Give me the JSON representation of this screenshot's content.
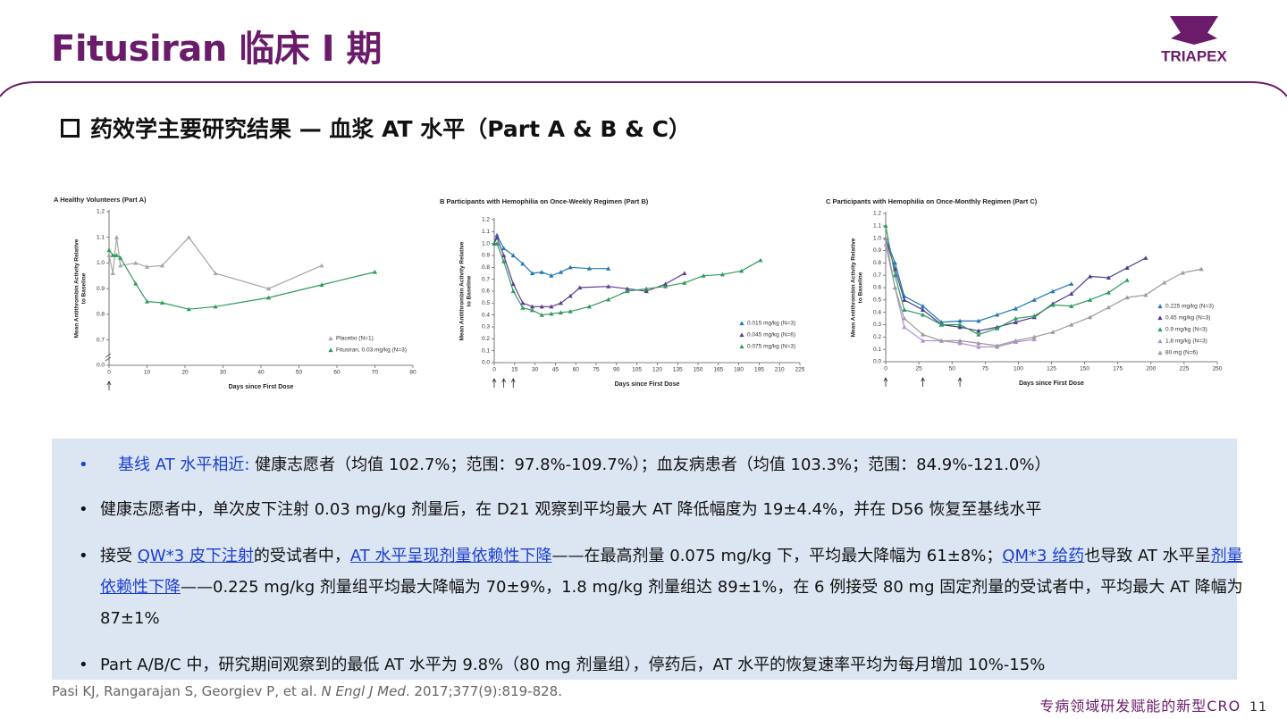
{
  "header": {
    "title": "Fitusiran 临床 I 期",
    "logo": "TRIAPEX"
  },
  "section_title": "药效学主要研究结果 — 血浆 AT 水平（Part A & B & C）",
  "chart_data": [
    {
      "type": "line",
      "title": "A  Healthy Volunteers (Part A)",
      "xlabel": "Days since First Dose",
      "ylabel": [
        "Mean Antithrombin Activity Relative",
        "to Baseline"
      ],
      "xlim": [
        0,
        80
      ],
      "xticks": [
        0,
        10,
        20,
        30,
        40,
        50,
        60,
        70,
        80
      ],
      "ylim": [
        0,
        1.2
      ],
      "yticks": [
        {
          "value": 0,
          "label": "0.0"
        },
        0.7,
        0.8,
        0.9,
        {
          "value": 1,
          "label": "1.0"
        },
        1.1,
        1.2
      ],
      "axis_break": true,
      "legend": "lower right",
      "dose_days": [
        0
      ],
      "series": [
        {
          "name": "Placebo (N=1)",
          "color": "#a6a6a6",
          "x": [
            0,
            1,
            2,
            3,
            7,
            10,
            14,
            21,
            28,
            42,
            56
          ],
          "values": [
            1.03,
            0.96,
            1.1,
            0.99,
            1.0,
            0.985,
            0.99,
            1.1,
            0.96,
            0.9,
            0.99
          ]
        },
        {
          "name": "Fitusiran, 0.03 mg/kg (N=3)",
          "color": "#2e9b5a",
          "x": [
            0,
            1,
            2,
            3,
            7,
            10,
            14,
            21,
            28,
            42,
            56,
            70
          ],
          "values": [
            1.05,
            1.03,
            1.03,
            1.02,
            0.92,
            0.85,
            0.845,
            0.82,
            0.83,
            0.865,
            0.915,
            0.965
          ]
        }
      ]
    },
    {
      "type": "line",
      "title": "B  Participants with Hemophilia on Once-Weekly Regimen (Part B)",
      "xlabel": "Days since First Dose",
      "ylabel": [
        "Mean Antithrombin Activity Relative",
        "to Baseline"
      ],
      "xlim": [
        0,
        225
      ],
      "xticks": [
        0,
        15,
        30,
        45,
        60,
        75,
        90,
        105,
        120,
        135,
        150,
        165,
        180,
        195,
        210,
        225
      ],
      "ylim": [
        0,
        1.2
      ],
      "yticks": [
        {
          "value": 0,
          "label": "0.0"
        },
        0.1,
        0.2,
        0.3,
        0.4,
        0.5,
        0.6,
        0.7,
        0.8,
        0.9,
        {
          "value": 1,
          "label": "1.0"
        },
        1.1,
        1.2
      ],
      "legend": "lower right",
      "dose_days": [
        0,
        7,
        14
      ],
      "series": [
        {
          "name": "0.015 mg/kg (N=3)",
          "color": "#1f78b4",
          "x": [
            0,
            2,
            7,
            14,
            21,
            28,
            35,
            42,
            49,
            56,
            70,
            84
          ],
          "values": [
            1.0,
            1.07,
            0.96,
            0.9,
            0.83,
            0.75,
            0.76,
            0.73,
            0.76,
            0.8,
            0.79,
            0.79
          ]
        },
        {
          "name": "0.045 mg/kg (N=6)",
          "color": "#5b3d8f",
          "x": [
            0,
            2,
            7,
            14,
            21,
            28,
            35,
            42,
            49,
            56,
            63,
            84,
            98,
            112,
            126,
            140
          ],
          "values": [
            1.0,
            1.05,
            0.9,
            0.66,
            0.5,
            0.47,
            0.47,
            0.47,
            0.5,
            0.56,
            0.63,
            0.64,
            0.62,
            0.6,
            0.66,
            0.75
          ]
        },
        {
          "name": "0.075 mg/kg (N=3)",
          "color": "#2e9b5a",
          "x": [
            0,
            2,
            7,
            14,
            21,
            28,
            35,
            42,
            49,
            56,
            70,
            84,
            98,
            112,
            126,
            140,
            154,
            168,
            182,
            196
          ],
          "values": [
            1.0,
            1.0,
            0.85,
            0.6,
            0.46,
            0.44,
            0.4,
            0.41,
            0.42,
            0.43,
            0.47,
            0.53,
            0.6,
            0.62,
            0.64,
            0.67,
            0.73,
            0.74,
            0.77,
            0.86
          ]
        }
      ]
    },
    {
      "type": "line",
      "title": "C  Participants with Hemophilia on Once-Monthly Regimen (Part C)",
      "xlabel": "Days since First Dose",
      "ylabel": [
        "Mean Antithrombin Activity Relative",
        "to Baseline"
      ],
      "xlim": [
        0,
        250
      ],
      "xticks": [
        0,
        25,
        50,
        75,
        100,
        125,
        150,
        175,
        200,
        225,
        250
      ],
      "ylim": [
        0,
        1.2
      ],
      "yticks": [
        {
          "value": 0,
          "label": "0.0"
        },
        0.1,
        0.2,
        0.3,
        0.4,
        0.5,
        0.6,
        0.7,
        0.8,
        0.9,
        {
          "value": 1,
          "label": "1.0"
        },
        1.1,
        1.2
      ],
      "legend": "right",
      "dose_days": [
        0,
        28,
        56
      ],
      "series": [
        {
          "name": "0.225 mg/kg (N=3)",
          "color": "#1f78b4",
          "x": [
            0,
            7,
            14,
            28,
            42,
            56,
            70,
            84,
            98,
            112,
            126,
            140
          ],
          "values": [
            1.0,
            0.8,
            0.53,
            0.45,
            0.32,
            0.33,
            0.33,
            0.38,
            0.43,
            0.5,
            0.57,
            0.63
          ]
        },
        {
          "name": "0.45 mg/kg (N=3)",
          "color": "#4b3a8c",
          "x": [
            0,
            7,
            14,
            28,
            42,
            56,
            70,
            84,
            98,
            112,
            126,
            140,
            154,
            168,
            182,
            196
          ],
          "values": [
            1.0,
            0.75,
            0.5,
            0.42,
            0.3,
            0.28,
            0.25,
            0.28,
            0.32,
            0.36,
            0.47,
            0.55,
            0.69,
            0.68,
            0.76,
            0.84
          ]
        },
        {
          "name": "0.9 mg/kg (N=3)",
          "color": "#2e9b5a",
          "x": [
            0,
            7,
            14,
            28,
            42,
            56,
            70,
            84,
            98,
            112,
            126,
            140,
            154,
            168,
            182
          ],
          "values": [
            1.1,
            0.7,
            0.42,
            0.38,
            0.3,
            0.3,
            0.22,
            0.27,
            0.35,
            0.37,
            0.46,
            0.45,
            0.5,
            0.56,
            0.66
          ]
        },
        {
          "name": "1.8 mg/kg (N=3)",
          "color": "#b48fd0",
          "x": [
            0,
            7,
            14,
            28,
            42,
            56,
            70,
            84,
            98,
            112
          ],
          "values": [
            0.95,
            0.6,
            0.28,
            0.17,
            0.17,
            0.15,
            0.12,
            0.12,
            0.16,
            0.18
          ]
        },
        {
          "name": "80 mg (N=6)",
          "color": "#9a9a9a",
          "x": [
            0,
            7,
            14,
            28,
            42,
            56,
            70,
            84,
            98,
            112,
            126,
            140,
            154,
            168,
            182,
            196,
            210,
            224,
            238
          ],
          "values": [
            1.0,
            0.6,
            0.35,
            0.22,
            0.17,
            0.17,
            0.15,
            0.13,
            0.17,
            0.2,
            0.24,
            0.3,
            0.36,
            0.44,
            0.52,
            0.54,
            0.64,
            0.72,
            0.75
          ]
        }
      ]
    }
  ],
  "bullets": [
    [
      {
        "text": "基线 AT 水平相近:",
        "style": "highlight"
      },
      {
        "text": " 健康志愿者（均值 102.7%；范围：97.8%-109.7%）；血友病患者（均值 103.3%；范围：84.9%-121.0%）"
      }
    ],
    [
      {
        "text": "健康志愿者中，单次皮下注射 0.03 mg/kg 剂量后，在 D21 观察到平均最大 AT 降低幅度为 19±4.4%，并在 D56 恢复至基线水平"
      }
    ],
    [
      {
        "text": "接受 "
      },
      {
        "text": "QW*3 皮下注射",
        "style": "link"
      },
      {
        "text": "的受试者中，"
      },
      {
        "text": "AT 水平呈现剂量依赖性下降",
        "style": "link"
      },
      {
        "text": "——在最高剂量 0.075 mg/kg 下，平均最大降幅为 61±8%；"
      },
      {
        "text": "QM*3 给药",
        "style": "link"
      },
      {
        "text": "也导致 AT 水平呈"
      },
      {
        "text": "剂量依赖性下降",
        "style": "link"
      },
      {
        "text": "——0.225 mg/kg 剂量组平均最大降幅为 70±9%，1.8 mg/kg 剂量组达 89±1%，在 6 例接受 80 mg 固定剂量的受试者中，平均最大 AT 降幅为 87±1%"
      }
    ],
    [
      {
        "text": "Part A/B/C 中，研究期间观察到的最低 AT 水平为 9.8%（80 mg 剂量组），停药后，AT 水平的恢复速率平均为每月增加 10%-15%"
      }
    ]
  ],
  "citation": {
    "authors": "Pasi KJ, Rangarajan S, Georgiev P, et al. ",
    "journal": "N Engl J Med",
    "details": ". 2017;377(9):819-828."
  },
  "footer": {
    "tagline": "专病领域研发赋能的新型CRO",
    "page": "11"
  }
}
